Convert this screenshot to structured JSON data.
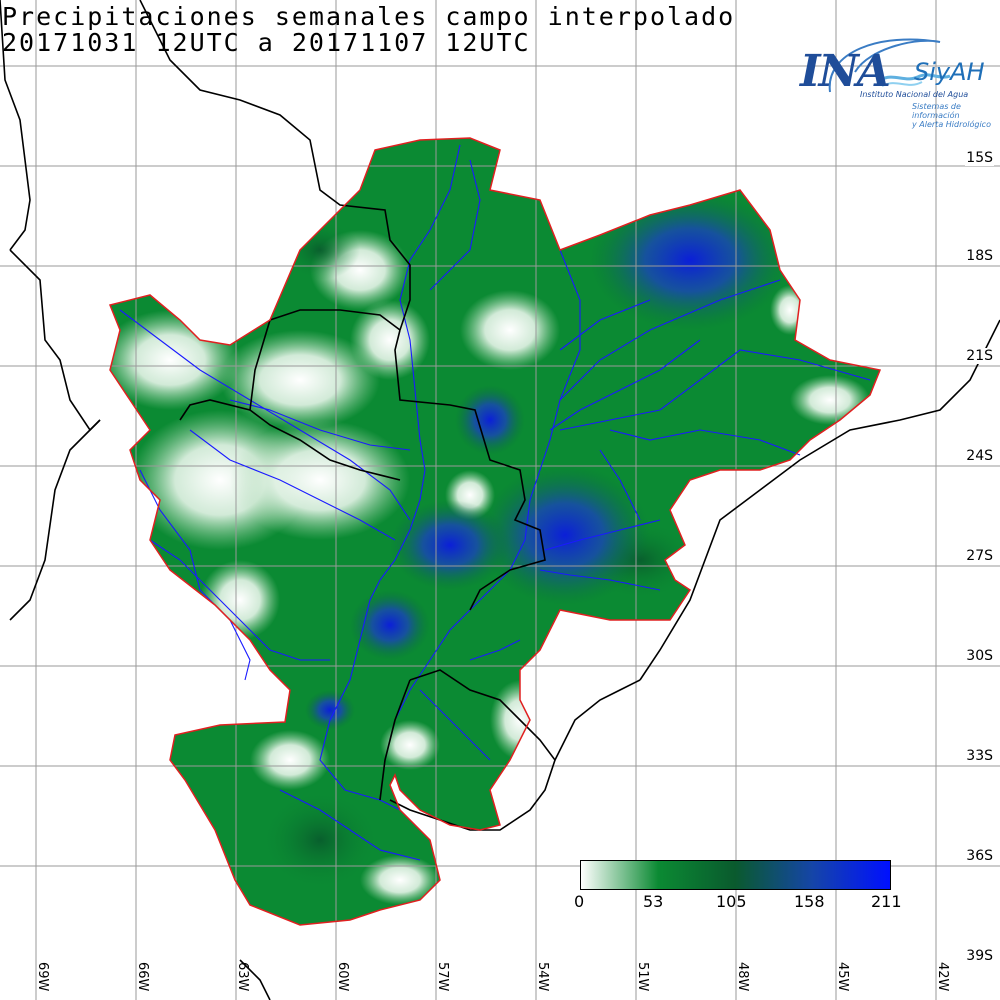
{
  "title_line1": "Precipitaciones semanales campo interpolado",
  "title_line2": "20171031 12UTC a 20171107 12UTC",
  "logo": {
    "name": "INA",
    "system": "SiyAH",
    "institution": "Instituto Nacional del Agua",
    "system_full_line1": "Sistemas de información",
    "system_full_line2": "y Alerta Hidrológico"
  },
  "latitude_labels": [
    "15S",
    "18S",
    "21S",
    "24S",
    "27S",
    "30S",
    "33S",
    "36S",
    "39S"
  ],
  "longitude_labels": [
    "69W",
    "66W",
    "63W",
    "60W",
    "57W",
    "54W",
    "51W",
    "48W",
    "45W",
    "42W"
  ],
  "colorbar": {
    "ticks": [
      "0",
      "53",
      "105",
      "158",
      "211"
    ],
    "colors": [
      "#ffffff",
      "#0b8a33",
      "#0a5a2e",
      "#1545a8",
      "#0010ff"
    ]
  },
  "colors": {
    "basin_outline": "#e02020",
    "rivers": "#1a1aff",
    "borders": "#000000",
    "grid": "#9a9a9a"
  }
}
